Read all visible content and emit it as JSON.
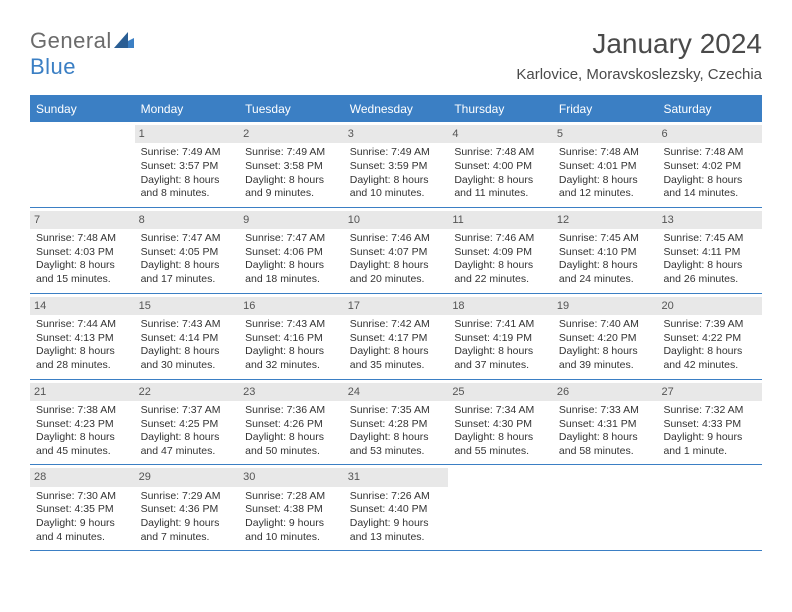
{
  "logo": {
    "text1": "General",
    "text2": "Blue"
  },
  "header": {
    "month_title": "January 2024",
    "location": "Karlovice, Moravskoslezsky, Czechia"
  },
  "colors": {
    "header_bg": "#3b7fc4",
    "date_bg": "#e8e8e8",
    "border": "#3b7fc4"
  },
  "day_names": [
    "Sunday",
    "Monday",
    "Tuesday",
    "Wednesday",
    "Thursday",
    "Friday",
    "Saturday"
  ],
  "weeks": [
    [
      null,
      {
        "d": "1",
        "sr": "Sunrise: 7:49 AM",
        "ss": "Sunset: 3:57 PM",
        "dl1": "Daylight: 8 hours",
        "dl2": "and 8 minutes."
      },
      {
        "d": "2",
        "sr": "Sunrise: 7:49 AM",
        "ss": "Sunset: 3:58 PM",
        "dl1": "Daylight: 8 hours",
        "dl2": "and 9 minutes."
      },
      {
        "d": "3",
        "sr": "Sunrise: 7:49 AM",
        "ss": "Sunset: 3:59 PM",
        "dl1": "Daylight: 8 hours",
        "dl2": "and 10 minutes."
      },
      {
        "d": "4",
        "sr": "Sunrise: 7:48 AM",
        "ss": "Sunset: 4:00 PM",
        "dl1": "Daylight: 8 hours",
        "dl2": "and 11 minutes."
      },
      {
        "d": "5",
        "sr": "Sunrise: 7:48 AM",
        "ss": "Sunset: 4:01 PM",
        "dl1": "Daylight: 8 hours",
        "dl2": "and 12 minutes."
      },
      {
        "d": "6",
        "sr": "Sunrise: 7:48 AM",
        "ss": "Sunset: 4:02 PM",
        "dl1": "Daylight: 8 hours",
        "dl2": "and 14 minutes."
      }
    ],
    [
      {
        "d": "7",
        "sr": "Sunrise: 7:48 AM",
        "ss": "Sunset: 4:03 PM",
        "dl1": "Daylight: 8 hours",
        "dl2": "and 15 minutes."
      },
      {
        "d": "8",
        "sr": "Sunrise: 7:47 AM",
        "ss": "Sunset: 4:05 PM",
        "dl1": "Daylight: 8 hours",
        "dl2": "and 17 minutes."
      },
      {
        "d": "9",
        "sr": "Sunrise: 7:47 AM",
        "ss": "Sunset: 4:06 PM",
        "dl1": "Daylight: 8 hours",
        "dl2": "and 18 minutes."
      },
      {
        "d": "10",
        "sr": "Sunrise: 7:46 AM",
        "ss": "Sunset: 4:07 PM",
        "dl1": "Daylight: 8 hours",
        "dl2": "and 20 minutes."
      },
      {
        "d": "11",
        "sr": "Sunrise: 7:46 AM",
        "ss": "Sunset: 4:09 PM",
        "dl1": "Daylight: 8 hours",
        "dl2": "and 22 minutes."
      },
      {
        "d": "12",
        "sr": "Sunrise: 7:45 AM",
        "ss": "Sunset: 4:10 PM",
        "dl1": "Daylight: 8 hours",
        "dl2": "and 24 minutes."
      },
      {
        "d": "13",
        "sr": "Sunrise: 7:45 AM",
        "ss": "Sunset: 4:11 PM",
        "dl1": "Daylight: 8 hours",
        "dl2": "and 26 minutes."
      }
    ],
    [
      {
        "d": "14",
        "sr": "Sunrise: 7:44 AM",
        "ss": "Sunset: 4:13 PM",
        "dl1": "Daylight: 8 hours",
        "dl2": "and 28 minutes."
      },
      {
        "d": "15",
        "sr": "Sunrise: 7:43 AM",
        "ss": "Sunset: 4:14 PM",
        "dl1": "Daylight: 8 hours",
        "dl2": "and 30 minutes."
      },
      {
        "d": "16",
        "sr": "Sunrise: 7:43 AM",
        "ss": "Sunset: 4:16 PM",
        "dl1": "Daylight: 8 hours",
        "dl2": "and 32 minutes."
      },
      {
        "d": "17",
        "sr": "Sunrise: 7:42 AM",
        "ss": "Sunset: 4:17 PM",
        "dl1": "Daylight: 8 hours",
        "dl2": "and 35 minutes."
      },
      {
        "d": "18",
        "sr": "Sunrise: 7:41 AM",
        "ss": "Sunset: 4:19 PM",
        "dl1": "Daylight: 8 hours",
        "dl2": "and 37 minutes."
      },
      {
        "d": "19",
        "sr": "Sunrise: 7:40 AM",
        "ss": "Sunset: 4:20 PM",
        "dl1": "Daylight: 8 hours",
        "dl2": "and 39 minutes."
      },
      {
        "d": "20",
        "sr": "Sunrise: 7:39 AM",
        "ss": "Sunset: 4:22 PM",
        "dl1": "Daylight: 8 hours",
        "dl2": "and 42 minutes."
      }
    ],
    [
      {
        "d": "21",
        "sr": "Sunrise: 7:38 AM",
        "ss": "Sunset: 4:23 PM",
        "dl1": "Daylight: 8 hours",
        "dl2": "and 45 minutes."
      },
      {
        "d": "22",
        "sr": "Sunrise: 7:37 AM",
        "ss": "Sunset: 4:25 PM",
        "dl1": "Daylight: 8 hours",
        "dl2": "and 47 minutes."
      },
      {
        "d": "23",
        "sr": "Sunrise: 7:36 AM",
        "ss": "Sunset: 4:26 PM",
        "dl1": "Daylight: 8 hours",
        "dl2": "and 50 minutes."
      },
      {
        "d": "24",
        "sr": "Sunrise: 7:35 AM",
        "ss": "Sunset: 4:28 PM",
        "dl1": "Daylight: 8 hours",
        "dl2": "and 53 minutes."
      },
      {
        "d": "25",
        "sr": "Sunrise: 7:34 AM",
        "ss": "Sunset: 4:30 PM",
        "dl1": "Daylight: 8 hours",
        "dl2": "and 55 minutes."
      },
      {
        "d": "26",
        "sr": "Sunrise: 7:33 AM",
        "ss": "Sunset: 4:31 PM",
        "dl1": "Daylight: 8 hours",
        "dl2": "and 58 minutes."
      },
      {
        "d": "27",
        "sr": "Sunrise: 7:32 AM",
        "ss": "Sunset: 4:33 PM",
        "dl1": "Daylight: 9 hours",
        "dl2": "and 1 minute."
      }
    ],
    [
      {
        "d": "28",
        "sr": "Sunrise: 7:30 AM",
        "ss": "Sunset: 4:35 PM",
        "dl1": "Daylight: 9 hours",
        "dl2": "and 4 minutes."
      },
      {
        "d": "29",
        "sr": "Sunrise: 7:29 AM",
        "ss": "Sunset: 4:36 PM",
        "dl1": "Daylight: 9 hours",
        "dl2": "and 7 minutes."
      },
      {
        "d": "30",
        "sr": "Sunrise: 7:28 AM",
        "ss": "Sunset: 4:38 PM",
        "dl1": "Daylight: 9 hours",
        "dl2": "and 10 minutes."
      },
      {
        "d": "31",
        "sr": "Sunrise: 7:26 AM",
        "ss": "Sunset: 4:40 PM",
        "dl1": "Daylight: 9 hours",
        "dl2": "and 13 minutes."
      },
      null,
      null,
      null
    ]
  ]
}
